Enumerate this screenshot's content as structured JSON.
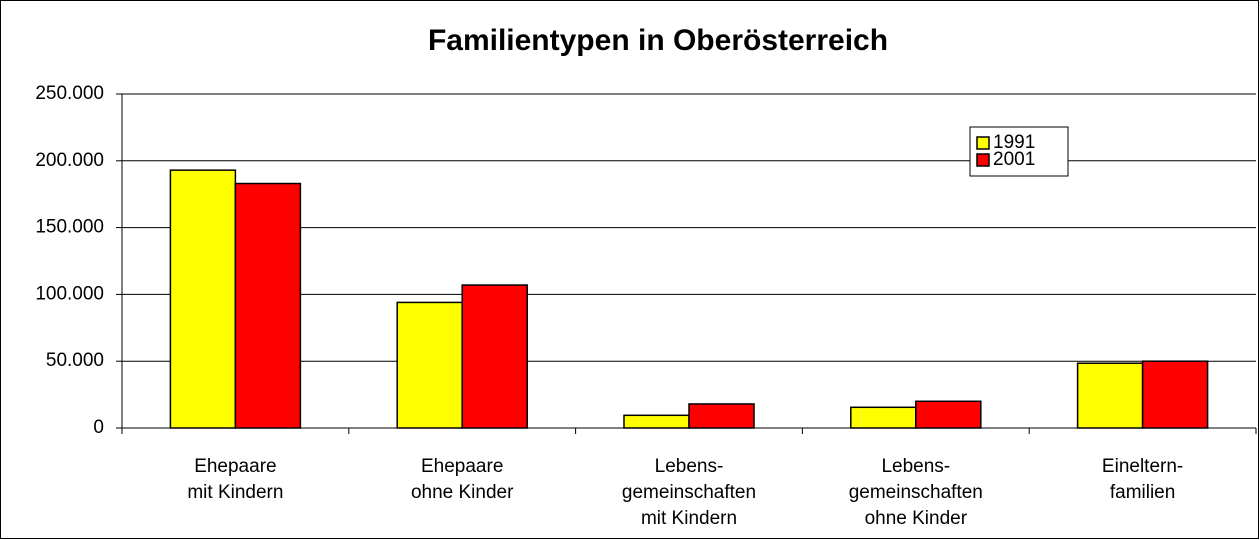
{
  "chart_data": {
    "type": "bar",
    "title": "Familientypen in Oberösterreich",
    "categories": [
      "Ehepaare\nmit Kindern",
      "Ehepaare\nohne Kinder",
      "Lebens-\ngemeinschaften\nmit Kindern",
      "Lebens-\ngemeinschaften\nohne Kinder",
      "Eineltern-\nfamilien"
    ],
    "series": [
      {
        "name": "1991",
        "color": "#ffff00",
        "values": [
          193000,
          94000,
          9500,
          15500,
          48500
        ]
      },
      {
        "name": "2001",
        "color": "#ff0000",
        "values": [
          183000,
          107000,
          18000,
          20000,
          50000
        ]
      }
    ],
    "ylim": [
      0,
      250000
    ],
    "yticks": [
      0,
      {
        "value": 50000,
        "label": "50.000"
      },
      {
        "value": 100000,
        "label": "100.000"
      },
      {
        "value": 150000,
        "label": "150.000"
      },
      {
        "value": 200000,
        "label": "200.000"
      },
      {
        "value": 250000,
        "label": "250.000"
      }
    ],
    "grid": true,
    "legend": "upper right"
  }
}
